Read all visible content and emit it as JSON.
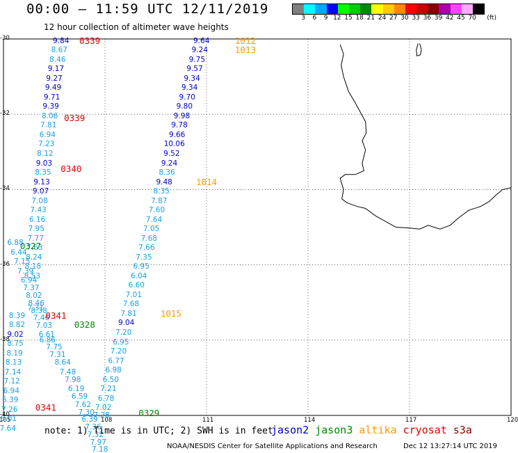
{
  "header": {
    "title": "00:00 – 11:59 UTC 12/11/2019",
    "subtitle": "12 hour collection of altimeter wave heights"
  },
  "legend": {
    "unit": "(ft)",
    "colors": [
      "#808080",
      "#00ffff",
      "#00aaff",
      "#0000ff",
      "#00ff00",
      "#00cc00",
      "#008800",
      "#ffff00",
      "#ffcc00",
      "#ff8800",
      "#ff0000",
      "#cc0000",
      "#880000",
      "#aa00aa",
      "#ff44ff",
      "#ffaaff",
      "#000000"
    ],
    "labels": [
      "3",
      "6",
      "9",
      "12",
      "15",
      "18",
      "21",
      "24",
      "27",
      "30",
      "33",
      "36",
      "39",
      "42",
      "45",
      "70"
    ]
  },
  "map": {
    "lon_range": [
      105,
      120
    ],
    "lat_range": [
      -40,
      -30
    ],
    "lon_ticks": [
      "105",
      "108",
      "111",
      "114",
      "117",
      "120"
    ],
    "lat_ticks": [
      "-30",
      "-32",
      "-34",
      "-36",
      "-38",
      "-40"
    ],
    "grid": true,
    "observations": [
      {
        "lon": 106.7,
        "lat": -30.05,
        "v": "9.84",
        "c": "#0000cc"
      },
      {
        "lon": 106.65,
        "lat": -30.3,
        "v": "8.67",
        "c": "#1aa0e0"
      },
      {
        "lon": 106.6,
        "lat": -30.55,
        "v": "8.46",
        "c": "#1aa0e0"
      },
      {
        "lon": 106.55,
        "lat": -30.8,
        "v": "9.17",
        "c": "#0000cc"
      },
      {
        "lon": 106.5,
        "lat": -31.05,
        "v": "9.27",
        "c": "#0000cc"
      },
      {
        "lon": 106.47,
        "lat": -31.3,
        "v": "9.49",
        "c": "#0000cc"
      },
      {
        "lon": 106.43,
        "lat": -31.55,
        "v": "9.71",
        "c": "#0000cc"
      },
      {
        "lon": 106.4,
        "lat": -31.8,
        "v": "9.39",
        "c": "#0000cc"
      },
      {
        "lon": 106.37,
        "lat": -32.05,
        "v": "8.06",
        "c": "#1aa0e0"
      },
      {
        "lon": 106.33,
        "lat": -32.3,
        "v": "7.81",
        "c": "#1aa0e0"
      },
      {
        "lon": 106.3,
        "lat": -32.55,
        "v": "6.94",
        "c": "#1aa0e0"
      },
      {
        "lon": 106.27,
        "lat": -32.8,
        "v": "7.23",
        "c": "#1aa0e0"
      },
      {
        "lon": 106.23,
        "lat": -33.05,
        "v": "8.12",
        "c": "#1aa0e0"
      },
      {
        "lon": 106.2,
        "lat": -33.3,
        "v": "9.03",
        "c": "#0000cc"
      },
      {
        "lon": 106.17,
        "lat": -33.55,
        "v": "8.35",
        "c": "#1aa0e0"
      },
      {
        "lon": 106.13,
        "lat": -33.8,
        "v": "9.13",
        "c": "#0000cc"
      },
      {
        "lon": 106.1,
        "lat": -34.05,
        "v": "9.07",
        "c": "#0000cc"
      },
      {
        "lon": 106.07,
        "lat": -34.3,
        "v": "7.08",
        "c": "#1aa0e0"
      },
      {
        "lon": 106.03,
        "lat": -34.55,
        "v": "7.43",
        "c": "#1aa0e0"
      },
      {
        "lon": 106.0,
        "lat": -34.8,
        "v": "6.16",
        "c": "#1aa0e0"
      },
      {
        "lon": 105.97,
        "lat": -35.05,
        "v": "7.95",
        "c": "#1aa0e0"
      },
      {
        "lon": 105.95,
        "lat": -35.3,
        "v": "7.77",
        "c": "#1aa0e0"
      },
      {
        "lon": 105.92,
        "lat": -35.55,
        "v": "7.63",
        "c": "#1aa0e0"
      },
      {
        "lon": 105.9,
        "lat": -35.8,
        "v": "8.24",
        "c": "#1aa0e0"
      },
      {
        "lon": 105.87,
        "lat": -36.05,
        "v": "8.18",
        "c": "#1aa0e0"
      },
      {
        "lon": 105.85,
        "lat": -36.3,
        "v": "8.53",
        "c": "#1aa0e0"
      },
      {
        "lon": 105.35,
        "lat": -35.42,
        "v": "6.88",
        "c": "#1aa0e0"
      },
      {
        "lon": 105.45,
        "lat": -35.67,
        "v": "6.44",
        "c": "#1aa0e0"
      },
      {
        "lon": 105.55,
        "lat": -35.92,
        "v": "7.15",
        "c": "#1aa0e0"
      },
      {
        "lon": 105.65,
        "lat": -36.17,
        "v": "7.39",
        "c": "#1aa0e0"
      },
      {
        "lon": 105.75,
        "lat": -36.42,
        "v": "6.94",
        "c": "#1aa0e0"
      },
      {
        "lon": 105.82,
        "lat": -36.62,
        "v": "7.37",
        "c": "#1aa0e0"
      },
      {
        "lon": 105.9,
        "lat": -36.82,
        "v": "8.02",
        "c": "#1aa0e0"
      },
      {
        "lon": 105.97,
        "lat": -37.02,
        "v": "8.46",
        "c": "#1aa0e0"
      },
      {
        "lon": 106.05,
        "lat": -37.22,
        "v": "8.38",
        "c": "#1aa0e0"
      },
      {
        "lon": 106.12,
        "lat": -37.42,
        "v": "7.46",
        "c": "#1aa0e0"
      },
      {
        "lon": 106.2,
        "lat": -37.62,
        "v": "7.03",
        "c": "#1aa0e0"
      },
      {
        "lon": 106.28,
        "lat": -37.85,
        "v": "6.61",
        "c": "#1aa0e0"
      },
      {
        "lon": 105.95,
        "lat": -37.15,
        "v": "7.31",
        "c": "#1aa0e0"
      },
      {
        "lon": 106.3,
        "lat": -38.0,
        "v": "6.86",
        "c": "#1aa0e0"
      },
      {
        "lon": 106.5,
        "lat": -38.18,
        "v": "7.75",
        "c": "#1aa0e0"
      },
      {
        "lon": 106.6,
        "lat": -38.4,
        "v": "7.31",
        "c": "#1aa0e0"
      },
      {
        "lon": 106.75,
        "lat": -38.6,
        "v": "8.64",
        "c": "#1aa0e0"
      },
      {
        "lon": 106.9,
        "lat": -38.85,
        "v": "7.48",
        "c": "#1aa0e0"
      },
      {
        "lon": 107.05,
        "lat": -39.05,
        "v": "7.98",
        "c": "#1aa0e0"
      },
      {
        "lon": 107.15,
        "lat": -39.3,
        "v": "6.19",
        "c": "#1aa0e0"
      },
      {
        "lon": 107.25,
        "lat": -39.5,
        "v": "6.59",
        "c": "#1aa0e0"
      },
      {
        "lon": 107.35,
        "lat": -39.72,
        "v": "7.62",
        "c": "#1aa0e0"
      },
      {
        "lon": 107.45,
        "lat": -39.92,
        "v": "7.30",
        "c": "#1aa0e0"
      },
      {
        "lon": 107.55,
        "lat": -40.12,
        "v": "6.39",
        "c": "#1aa0e0"
      },
      {
        "lon": 107.65,
        "lat": -40.32,
        "v": "7.36",
        "c": "#1aa0e0"
      },
      {
        "lon": 107.72,
        "lat": -40.52,
        "v": "7.32",
        "c": "#1aa0e0"
      },
      {
        "lon": 107.8,
        "lat": -40.72,
        "v": "7.97",
        "c": "#1aa0e0"
      },
      {
        "lon": 107.85,
        "lat": -40.9,
        "v": "7.18",
        "c": "#1aa0e0"
      },
      {
        "lon": 105.4,
        "lat": -37.35,
        "v": "8.39",
        "c": "#1aa0e0"
      },
      {
        "lon": 105.4,
        "lat": -37.6,
        "v": "8.82",
        "c": "#1aa0e0"
      },
      {
        "lon": 105.35,
        "lat": -37.85,
        "v": "9.02",
        "c": "#0000cc"
      },
      {
        "lon": 105.35,
        "lat": -38.1,
        "v": "8.75",
        "c": "#1aa0e0"
      },
      {
        "lon": 105.33,
        "lat": -38.35,
        "v": "8.19",
        "c": "#1aa0e0"
      },
      {
        "lon": 105.3,
        "lat": -38.6,
        "v": "8.13",
        "c": "#1aa0e0"
      },
      {
        "lon": 105.28,
        "lat": -38.85,
        "v": "7.14",
        "c": "#1aa0e0"
      },
      {
        "lon": 105.25,
        "lat": -39.1,
        "v": "7.12",
        "c": "#1aa0e0"
      },
      {
        "lon": 105.23,
        "lat": -39.35,
        "v": "6.94",
        "c": "#1aa0e0"
      },
      {
        "lon": 105.2,
        "lat": -39.6,
        "v": "6.39",
        "c": "#1aa0e0"
      },
      {
        "lon": 105.18,
        "lat": -39.85,
        "v": "7.26",
        "c": "#1aa0e0"
      },
      {
        "lon": 105.15,
        "lat": -40.1,
        "v": "8.01",
        "c": "#1aa0e0"
      },
      {
        "lon": 105.13,
        "lat": -40.35,
        "v": "7.64",
        "c": "#1aa0e0"
      },
      {
        "lon": 110.85,
        "lat": -30.05,
        "v": "9.64",
        "c": "#0000cc"
      },
      {
        "lon": 110.8,
        "lat": -30.3,
        "v": "9.24",
        "c": "#0000cc"
      },
      {
        "lon": 110.72,
        "lat": -30.55,
        "v": "9.75",
        "c": "#0000cc"
      },
      {
        "lon": 110.65,
        "lat": -30.8,
        "v": "9.57",
        "c": "#0000cc"
      },
      {
        "lon": 110.57,
        "lat": -31.05,
        "v": "9.34",
        "c": "#0000cc"
      },
      {
        "lon": 110.5,
        "lat": -31.3,
        "v": "9.34",
        "c": "#0000cc"
      },
      {
        "lon": 110.43,
        "lat": -31.55,
        "v": "9.70",
        "c": "#0000cc"
      },
      {
        "lon": 110.35,
        "lat": -31.8,
        "v": "9.80",
        "c": "#0000cc"
      },
      {
        "lon": 110.27,
        "lat": -32.05,
        "v": "9.98",
        "c": "#0000cc"
      },
      {
        "lon": 110.2,
        "lat": -32.3,
        "v": "9.78",
        "c": "#0000cc"
      },
      {
        "lon": 110.13,
        "lat": -32.55,
        "v": "9.66",
        "c": "#0000cc"
      },
      {
        "lon": 110.05,
        "lat": -32.8,
        "v": "10.06",
        "c": "#0000cc"
      },
      {
        "lon": 109.97,
        "lat": -33.05,
        "v": "9.52",
        "c": "#0000cc"
      },
      {
        "lon": 109.9,
        "lat": -33.3,
        "v": "9.24",
        "c": "#0000cc"
      },
      {
        "lon": 109.83,
        "lat": -33.55,
        "v": "8.36",
        "c": "#1aa0e0"
      },
      {
        "lon": 109.75,
        "lat": -33.8,
        "v": "9.48",
        "c": "#0000cc"
      },
      {
        "lon": 109.67,
        "lat": -34.05,
        "v": "8.35",
        "c": "#1aa0e0"
      },
      {
        "lon": 109.6,
        "lat": -34.3,
        "v": "7.87",
        "c": "#1aa0e0"
      },
      {
        "lon": 109.53,
        "lat": -34.55,
        "v": "7.60",
        "c": "#1aa0e0"
      },
      {
        "lon": 109.45,
        "lat": -34.8,
        "v": "7.64",
        "c": "#1aa0e0"
      },
      {
        "lon": 109.37,
        "lat": -35.05,
        "v": "7.05",
        "c": "#1aa0e0"
      },
      {
        "lon": 109.3,
        "lat": -35.3,
        "v": "7.68",
        "c": "#1aa0e0"
      },
      {
        "lon": 109.23,
        "lat": -35.55,
        "v": "7.66",
        "c": "#1aa0e0"
      },
      {
        "lon": 109.15,
        "lat": -35.8,
        "v": "7.35",
        "c": "#1aa0e0"
      },
      {
        "lon": 109.07,
        "lat": -36.05,
        "v": "6.95",
        "c": "#1aa0e0"
      },
      {
        "lon": 109.0,
        "lat": -36.3,
        "v": "6.04",
        "c": "#1aa0e0"
      },
      {
        "lon": 108.93,
        "lat": -36.55,
        "v": "6.60",
        "c": "#1aa0e0"
      },
      {
        "lon": 108.85,
        "lat": -36.8,
        "v": "7.01",
        "c": "#1aa0e0"
      },
      {
        "lon": 108.77,
        "lat": -37.05,
        "v": "7.68",
        "c": "#1aa0e0"
      },
      {
        "lon": 108.7,
        "lat": -37.3,
        "v": "7.81",
        "c": "#1aa0e0"
      },
      {
        "lon": 108.63,
        "lat": -37.55,
        "v": "9.04",
        "c": "#0000cc"
      },
      {
        "lon": 108.55,
        "lat": -37.8,
        "v": "7.20",
        "c": "#1aa0e0"
      },
      {
        "lon": 108.47,
        "lat": -38.05,
        "v": "6.95",
        "c": "#1aa0e0"
      },
      {
        "lon": 108.4,
        "lat": -38.3,
        "v": "7.20",
        "c": "#1aa0e0"
      },
      {
        "lon": 108.33,
        "lat": -38.55,
        "v": "6.77",
        "c": "#1aa0e0"
      },
      {
        "lon": 108.25,
        "lat": -38.8,
        "v": "6.98",
        "c": "#1aa0e0"
      },
      {
        "lon": 108.17,
        "lat": -39.05,
        "v": "6.50",
        "c": "#1aa0e0"
      },
      {
        "lon": 108.1,
        "lat": -39.3,
        "v": "7.21",
        "c": "#1aa0e0"
      },
      {
        "lon": 108.03,
        "lat": -39.55,
        "v": "6.78",
        "c": "#1aa0e0"
      },
      {
        "lon": 107.95,
        "lat": -39.8,
        "v": "7.02",
        "c": "#1aa0e0"
      },
      {
        "lon": 107.9,
        "lat": -40.0,
        "v": "7.28",
        "c": "#1aa0e0"
      }
    ],
    "pass_times": [
      {
        "lon": 107.55,
        "lat": -30.05,
        "t": "0339",
        "c": "#dd0000"
      },
      {
        "lon": 107.1,
        "lat": -32.1,
        "t": "0339",
        "c": "#dd0000"
      },
      {
        "lon": 107.0,
        "lat": -33.45,
        "t": "0340",
        "c": "#dd0000"
      },
      {
        "lon": 105.8,
        "lat": -35.5,
        "t": "0327",
        "c": "#008800"
      },
      {
        "lon": 106.55,
        "lat": -37.35,
        "t": "0341",
        "c": "#dd0000"
      },
      {
        "lon": 107.4,
        "lat": -37.6,
        "t": "0328",
        "c": "#008800"
      },
      {
        "lon": 106.25,
        "lat": -39.8,
        "t": "0341",
        "c": "#dd0000"
      },
      {
        "lon": 109.3,
        "lat": -39.95,
        "t": "0329",
        "c": "#008800"
      },
      {
        "lon": 112.15,
        "lat": -30.05,
        "t": "1012",
        "c": "#ff9900"
      },
      {
        "lon": 112.15,
        "lat": -30.3,
        "t": "1013",
        "c": "#ff9900"
      },
      {
        "lon": 111.0,
        "lat": -33.8,
        "t": "1014",
        "c": "#ff9900"
      },
      {
        "lon": 109.95,
        "lat": -37.3,
        "t": "1015",
        "c": "#ff9900"
      }
    ]
  },
  "footer": {
    "note": "note: 1) Time is in UTC; 2) SWH is in feet",
    "satellites": [
      {
        "name": "jason2",
        "color": "#0000cc"
      },
      {
        "name": "jason3",
        "color": "#008800"
      },
      {
        "name": "altika",
        "color": "#ff9900"
      },
      {
        "name": "cryosat",
        "color": "#dd0000"
      },
      {
        "name": "s3a",
        "color": "#880000"
      }
    ],
    "credit": "NOAA/NESDIS Center for Satellite Applications and Research",
    "timestamp": "Dec 12 13:27:14 UTC 2019"
  }
}
